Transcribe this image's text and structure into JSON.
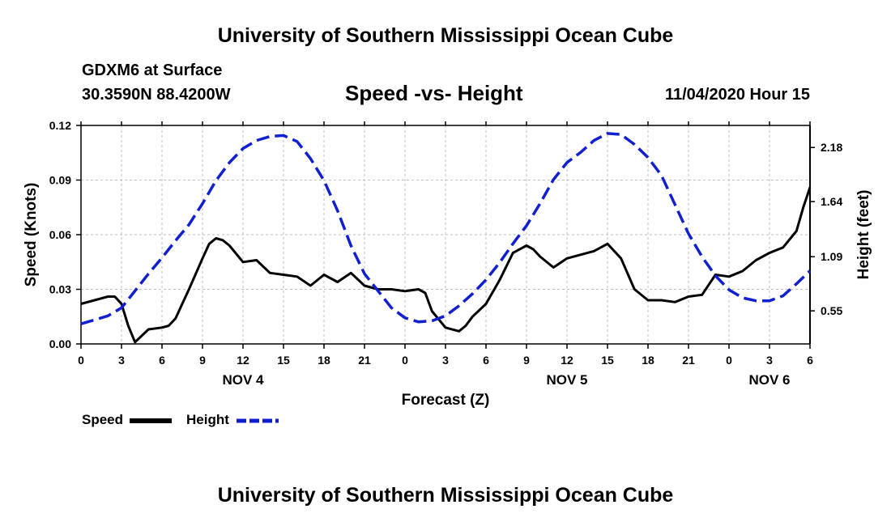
{
  "header": {
    "title": "University of Southern Mississippi Ocean Cube",
    "station": "GDXM6 at Surface",
    "coords": "30.3590N 88.4200W",
    "chart_title": "Speed -vs- Height",
    "date": "11/04/2020 Hour 15"
  },
  "footer": {
    "title": "University of Southern Mississippi Ocean Cube"
  },
  "legend": {
    "speed_label": "Speed",
    "height_label": "Height"
  },
  "colors": {
    "speed": "#000000",
    "height": "#1020d0"
  },
  "chart_data": {
    "type": "line",
    "title": "Speed -vs- Height",
    "xlabel": "Forecast (Z)",
    "ylabel": "Speed (Knots)",
    "y2label": "Height (feet)",
    "xlim": [
      0,
      54
    ],
    "ylim": [
      0,
      0.12
    ],
    "y2lim": [
      0.22,
      2.4
    ],
    "yticks": [
      0.0,
      0.03,
      0.06,
      0.09,
      0.12
    ],
    "ytick_labels": [
      "0.00",
      "0.03",
      "0.06",
      "0.09",
      "0.12"
    ],
    "y2ticks": [
      0.55,
      1.09,
      1.64,
      2.18
    ],
    "y2tick_labels": [
      "0.55",
      "1.09",
      "1.64",
      "2.18"
    ],
    "xticks": [
      0,
      3,
      6,
      9,
      12,
      15,
      18,
      21,
      24,
      27,
      30,
      33,
      36,
      39,
      42,
      45,
      48,
      51,
      54
    ],
    "xtick_labels": [
      "0",
      "3",
      "6",
      "9",
      "12",
      "15",
      "18",
      "21",
      "0",
      "3",
      "6",
      "9",
      "12",
      "15",
      "18",
      "21",
      "0",
      "3",
      "6"
    ],
    "date_labels": [
      {
        "x": 12,
        "label": "NOV 4"
      },
      {
        "x": 36,
        "label": "NOV 5"
      },
      {
        "x": 51,
        "label": "NOV 6"
      }
    ],
    "series": [
      {
        "name": "Speed",
        "axis": "left",
        "style": "solid",
        "x": [
          0,
          1,
          2,
          2.5,
          3,
          3.5,
          4,
          5,
          6,
          6.5,
          7,
          8,
          9,
          9.5,
          10,
          10.5,
          11,
          12,
          13,
          14,
          15,
          16,
          17,
          18,
          19,
          20,
          21,
          22,
          23,
          24,
          25,
          25.5,
          26,
          27,
          28,
          28.5,
          29,
          30,
          31,
          32,
          33,
          33.5,
          34,
          35,
          36,
          37,
          38,
          39,
          40,
          41,
          42,
          43,
          44,
          45,
          46,
          47,
          48,
          49,
          50,
          51,
          52,
          53,
          53.5,
          54
        ],
        "values": [
          0.022,
          0.024,
          0.026,
          0.026,
          0.022,
          0.01,
          0.001,
          0.008,
          0.009,
          0.01,
          0.014,
          0.03,
          0.047,
          0.055,
          0.058,
          0.057,
          0.054,
          0.045,
          0.046,
          0.039,
          0.038,
          0.037,
          0.032,
          0.038,
          0.034,
          0.039,
          0.032,
          0.03,
          0.03,
          0.029,
          0.03,
          0.028,
          0.018,
          0.009,
          0.007,
          0.01,
          0.015,
          0.022,
          0.035,
          0.05,
          0.054,
          0.052,
          0.048,
          0.042,
          0.047,
          0.049,
          0.051,
          0.055,
          0.047,
          0.03,
          0.024,
          0.024,
          0.023,
          0.026,
          0.027,
          0.038,
          0.037,
          0.04,
          0.046,
          0.05,
          0.053,
          0.062,
          0.075,
          0.086
        ]
      },
      {
        "name": "Height",
        "axis": "right",
        "style": "dashed",
        "x": [
          0,
          1,
          2,
          3,
          4,
          5,
          6,
          7,
          8,
          9,
          10,
          11,
          12,
          13,
          14,
          15,
          16,
          17,
          18,
          19,
          20,
          21,
          22,
          23,
          24,
          25,
          26,
          27,
          28,
          29,
          30,
          31,
          32,
          33,
          34,
          35,
          36,
          37,
          38,
          39,
          40,
          41,
          42,
          43,
          44,
          45,
          46,
          47,
          48,
          49,
          50,
          51,
          52,
          53,
          54
        ],
        "values": [
          0.42,
          0.46,
          0.5,
          0.58,
          0.75,
          0.92,
          1.08,
          1.25,
          1.41,
          1.62,
          1.85,
          2.03,
          2.17,
          2.25,
          2.29,
          2.3,
          2.24,
          2.07,
          1.85,
          1.55,
          1.2,
          0.92,
          0.75,
          0.58,
          0.48,
          0.44,
          0.45,
          0.5,
          0.6,
          0.72,
          0.86,
          1.03,
          1.22,
          1.4,
          1.62,
          1.86,
          2.03,
          2.13,
          2.25,
          2.32,
          2.31,
          2.21,
          2.08,
          1.9,
          1.61,
          1.32,
          1.09,
          0.9,
          0.76,
          0.68,
          0.65,
          0.65,
          0.7,
          0.82,
          0.95
        ]
      }
    ]
  }
}
